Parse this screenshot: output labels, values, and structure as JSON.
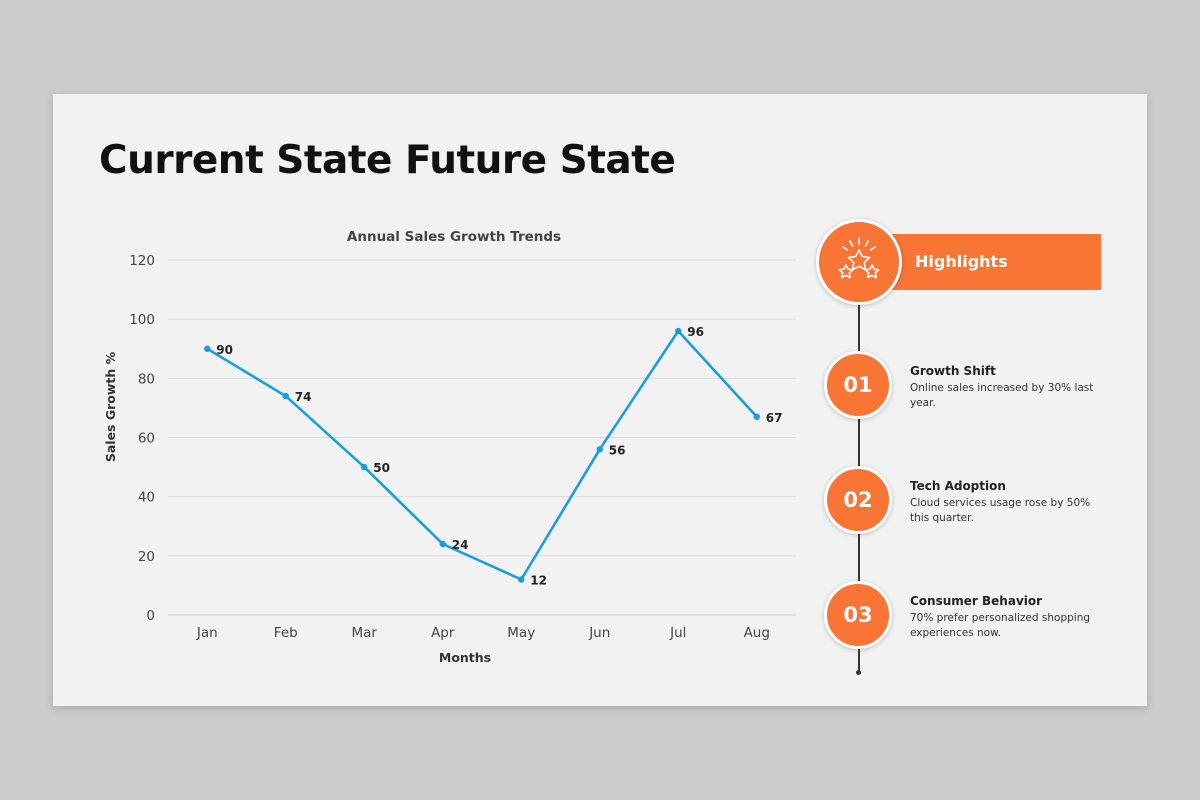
{
  "page": {
    "title": "Current State Future State"
  },
  "chart_data": {
    "type": "line",
    "title": "Annual Sales Growth Trends",
    "xlabel": "Months",
    "ylabel": "Sales Growth %",
    "categories": [
      "Jan",
      "Feb",
      "Mar",
      "Apr",
      "May",
      "Jun",
      "Jul",
      "Aug"
    ],
    "values": [
      90,
      74,
      50,
      24,
      12,
      56,
      96,
      67
    ],
    "ylim": [
      0,
      120
    ],
    "yticks": [
      0,
      20,
      40,
      60,
      80,
      100,
      120
    ],
    "grid": true,
    "data_labels": true,
    "line_color": "#1a9de0"
  },
  "highlights": {
    "label": "Highlights",
    "icon": "stars-icon",
    "accent_color": "#f87535",
    "items": [
      {
        "number": "01",
        "title": "Growth Shift",
        "description": "Online sales increased by 30% last year."
      },
      {
        "number": "02",
        "title": "Tech Adoption",
        "description": "Cloud services usage rose by 50% this quarter."
      },
      {
        "number": "03",
        "title": "Consumer Behavior",
        "description": "70% prefer personalized shopping experiences now."
      }
    ]
  }
}
